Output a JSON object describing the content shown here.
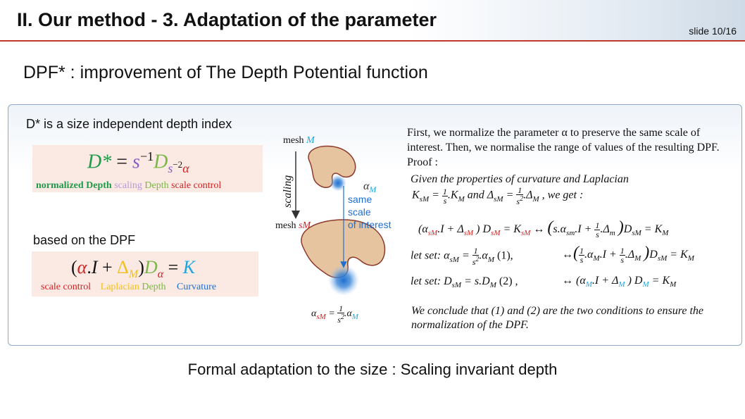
{
  "slide": {
    "title": "II. Our method - 3. Adaptation of the parameter",
    "slide_number": "slide 10/16",
    "subtitle": "DPF* : improvement of The Depth Potential function",
    "footer": "Formal adaptation to the size : Scaling invariant depth"
  },
  "left": {
    "heading1": "D* is a size independent depth index",
    "formula1_labels": {
      "normalized": "normalized Depth",
      "scaling": "scaling",
      "depth": "Depth",
      "scale_control": "scale control"
    },
    "heading2": "based on the DPF",
    "formula2_labels": {
      "scale_control": "scale control",
      "laplacian": "Laplacian",
      "depth": "Depth",
      "curvature": "Curvature"
    }
  },
  "diagram": {
    "scaling_label": "scaling",
    "mesh_top_label": "mesh",
    "mesh_top_var": "M",
    "mesh_bottom_label": "mesh",
    "mesh_bottom_var": "sM",
    "alpha_label": "αM",
    "same_scale_line1": "same",
    "same_scale_line2": "scale",
    "same_scale_line3": "of interest"
  },
  "right": {
    "intro": "First, we normalize the parameter α to preserve the same scale of interest. Then, we normalise the range of values of the resulting DPF.  Proof :",
    "given_line": "Given the properties of curvature and Laplacian",
    "we_get": ", we get :",
    "and_word": "and",
    "let_set1": "let set:",
    "let_set1_tag": "(1),",
    "let_set2": "let set:",
    "let_set2_tag": "(2) ,",
    "conclusion_line1": "We conclude that (1) and (2) are the two conditions to ensure the",
    "conclusion_line2": "normalization of the DPF."
  },
  "colors": {
    "header_rule": "#c0392b",
    "panel_border": "#8fa9c6",
    "formula_bg": "#fbe9e4",
    "arrow_blue": "#1f6fd1",
    "shape_fill": "#e6c4a0",
    "shape_stroke": "#8b3a2b"
  }
}
